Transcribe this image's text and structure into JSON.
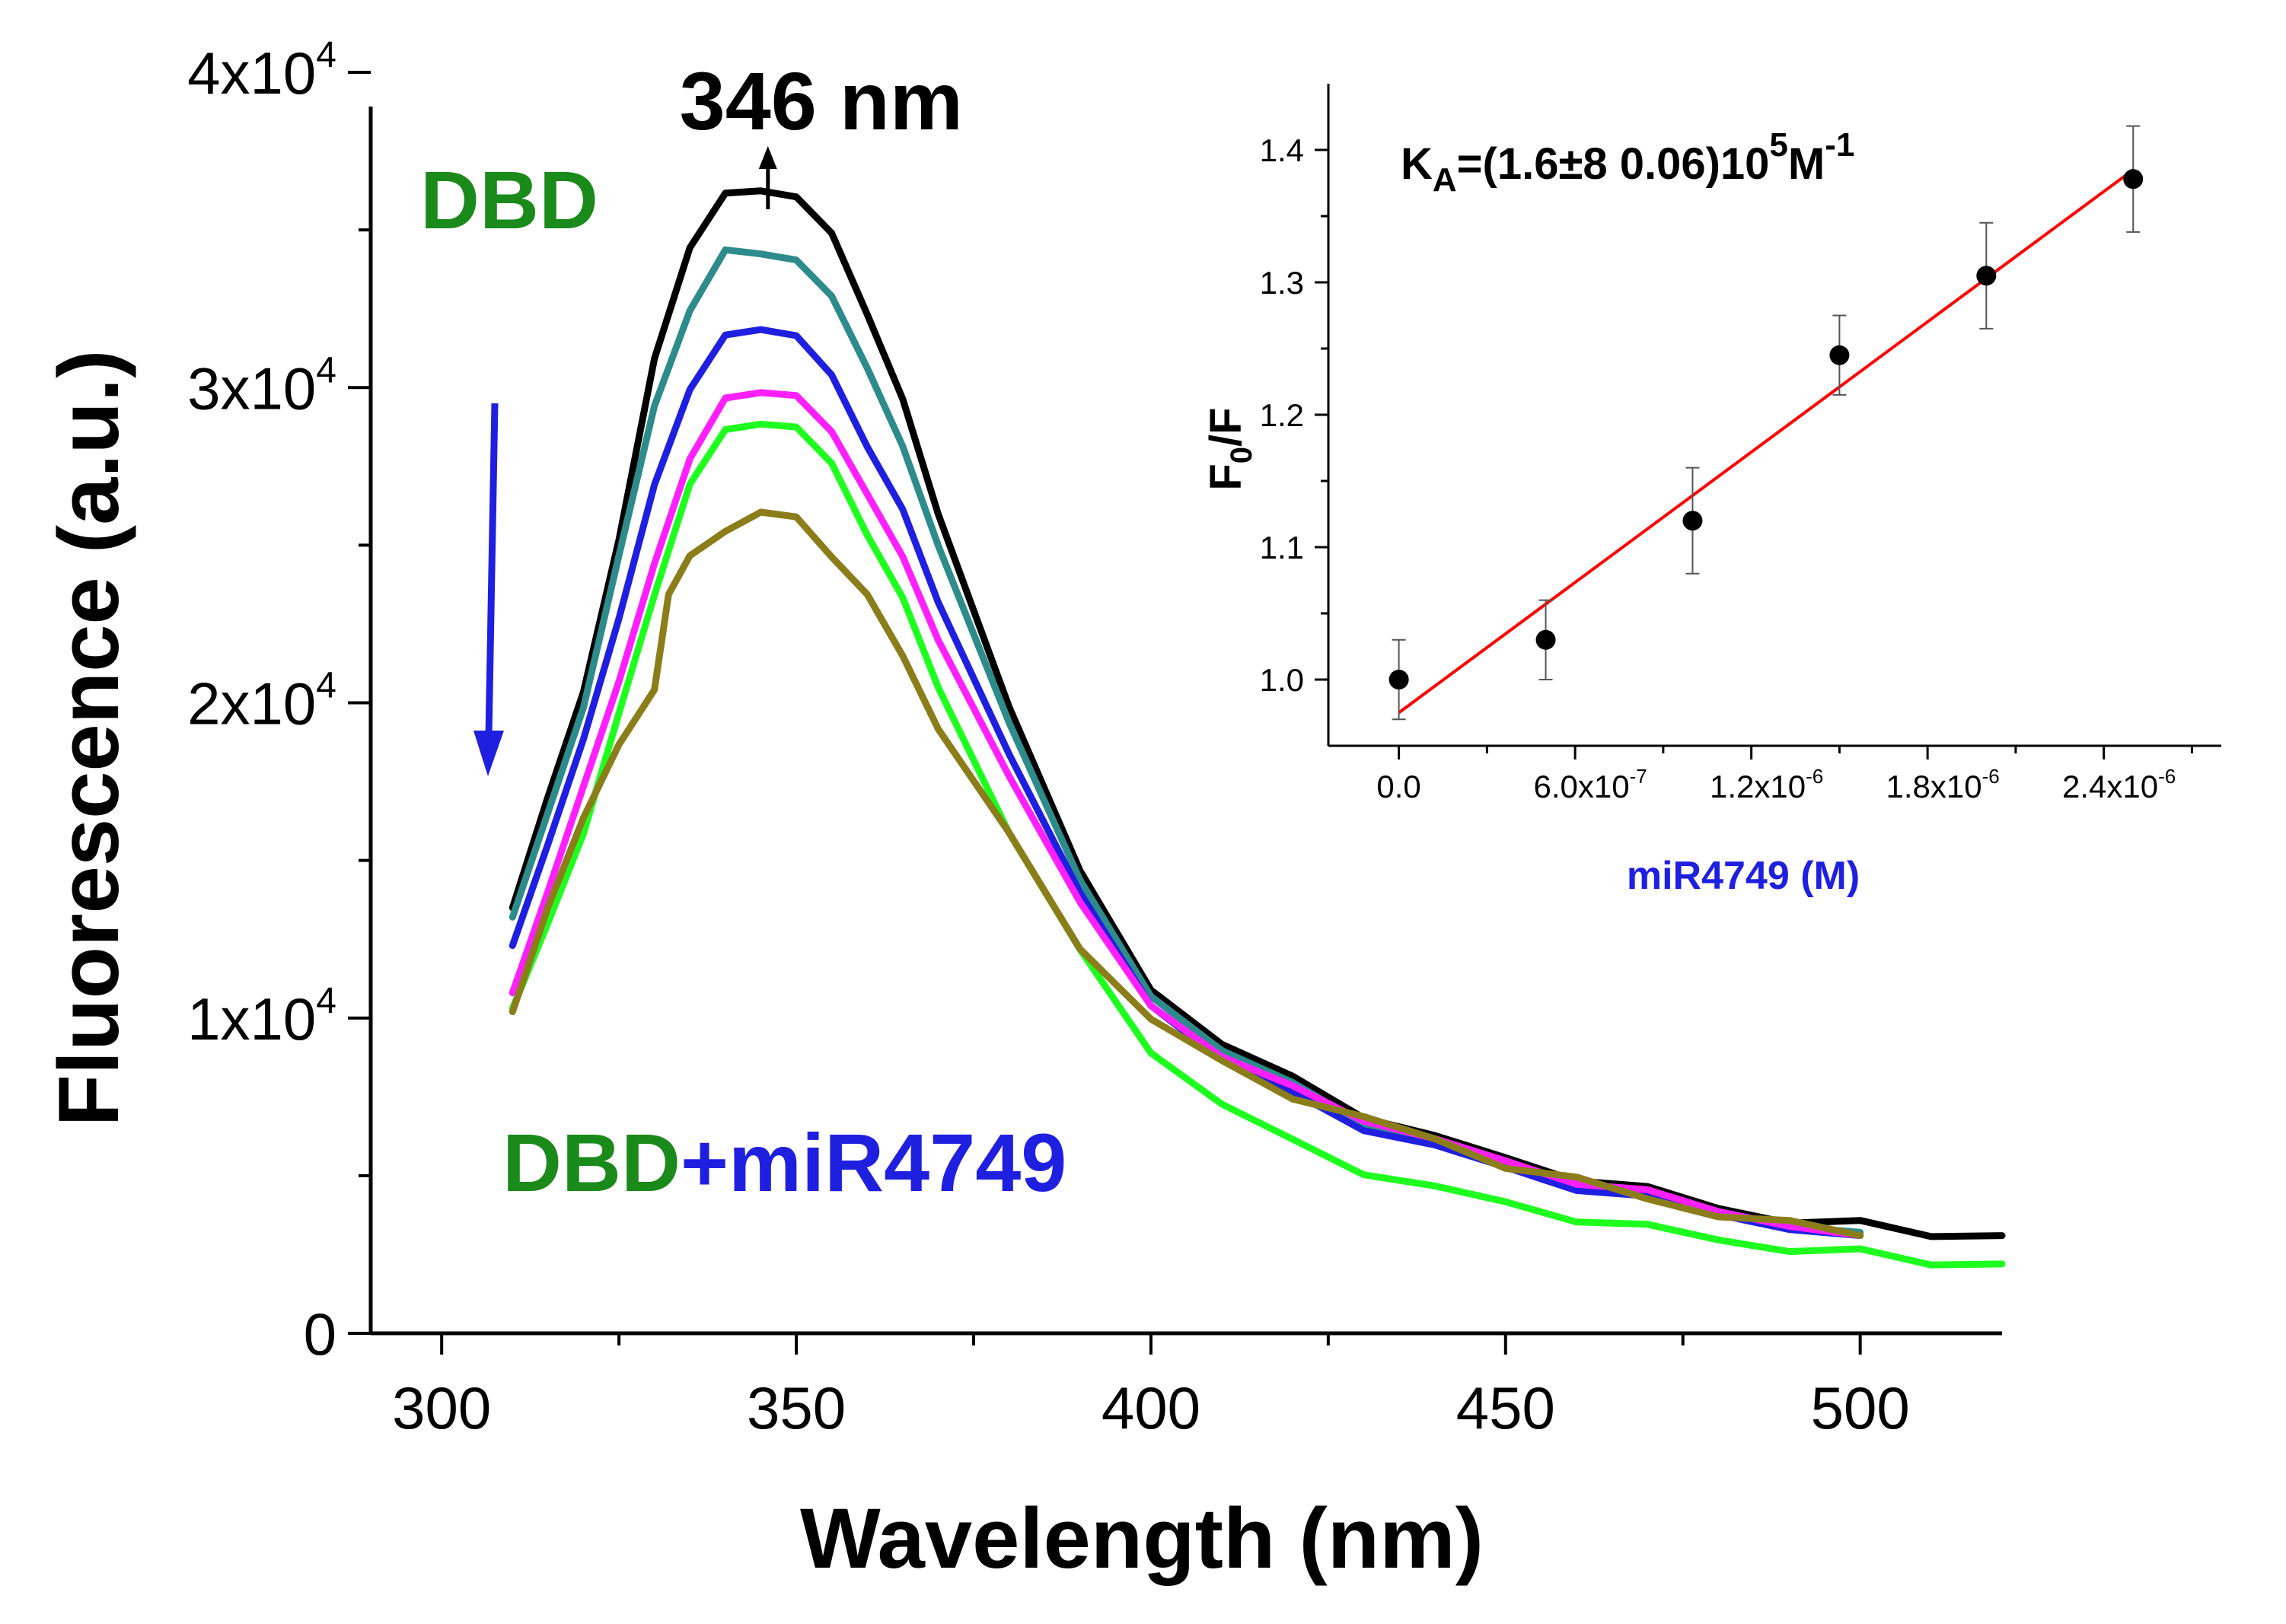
{
  "chart_data": [
    {
      "type": "line",
      "name": "main-spectrum",
      "xlabel": "Wavelength (nm)",
      "ylabel": "Fluorescence (a.u.)",
      "xlim": [
        290,
        520
      ],
      "ylim": [
        0,
        40000
      ],
      "x_ticks": [
        300,
        350,
        400,
        450,
        500
      ],
      "y_ticks": [
        {
          "value": 0,
          "base": "0",
          "exp": ""
        },
        {
          "value": 10000,
          "base": "1x10",
          "exp": "4"
        },
        {
          "value": 20000,
          "base": "2x10",
          "exp": "4"
        },
        {
          "value": 30000,
          "base": "3x10",
          "exp": "4"
        },
        {
          "value": 40000,
          "base": "4x10",
          "exp": "4"
        }
      ],
      "annotations": {
        "peak": "346 nm",
        "peak_x": 346,
        "dbd": "DBD",
        "dbd_mir_a": "DBD",
        "dbd_mir_b": "+miR4749"
      },
      "series": [
        {
          "name": "black",
          "color": "#000000",
          "x": [
            310,
            315,
            320,
            325,
            330,
            335,
            340,
            345,
            350,
            355,
            360,
            365,
            370,
            380,
            390,
            400,
            410,
            420,
            430,
            440,
            450,
            460,
            470,
            480,
            490,
            500,
            510,
            520
          ],
          "y": [
            13500,
            17000,
            20500,
            25000,
            31000,
            34500,
            36000,
            36400,
            36000,
            34800,
            32500,
            29500,
            26000,
            20000,
            14500,
            11000,
            9200,
            8000,
            7000,
            6200,
            5500,
            5000,
            4500,
            4000,
            3600,
            3400,
            3200,
            3100
          ]
        },
        {
          "name": "teal",
          "color": "#2e8b8b",
          "x": [
            310,
            315,
            320,
            325,
            330,
            335,
            340,
            345,
            350,
            355,
            360,
            365,
            370,
            380,
            390,
            400,
            410,
            420,
            430,
            440,
            450,
            460,
            470,
            480,
            490,
            500
          ],
          "y": [
            13200,
            16500,
            20000,
            24500,
            29500,
            32500,
            34200,
            34400,
            34000,
            32800,
            30800,
            28000,
            25000,
            19500,
            14200,
            10800,
            9000,
            7800,
            6800,
            6000,
            5300,
            4800,
            4300,
            3900,
            3500,
            3200
          ]
        },
        {
          "name": "blue",
          "color": "#1f1fe0",
          "x": [
            310,
            315,
            320,
            325,
            330,
            335,
            340,
            345,
            350,
            355,
            360,
            365,
            370,
            380,
            390,
            400,
            410,
            420,
            430,
            440,
            450,
            460,
            470,
            480,
            490,
            500
          ],
          "y": [
            12300,
            15500,
            19000,
            22500,
            27000,
            30000,
            31500,
            32000,
            31600,
            30300,
            28300,
            26000,
            23200,
            18500,
            13800,
            10500,
            8700,
            7500,
            6600,
            5900,
            5200,
            4700,
            4200,
            3800,
            3400,
            3100
          ]
        },
        {
          "name": "magenta",
          "color": "#ff1fff",
          "x": [
            310,
            315,
            320,
            325,
            330,
            335,
            340,
            345,
            350,
            355,
            360,
            365,
            370,
            380,
            390,
            400,
            410,
            420,
            430,
            440,
            450,
            460,
            470,
            480,
            490,
            500
          ],
          "y": [
            10800,
            14000,
            17500,
            20500,
            24500,
            27800,
            29500,
            30000,
            29700,
            28500,
            26800,
            24500,
            22000,
            17800,
            13500,
            10500,
            8800,
            7700,
            6900,
            6100,
            5400,
            4900,
            4400,
            3900,
            3500,
            3100
          ]
        },
        {
          "name": "green",
          "color": "#1fff1f",
          "x": [
            310,
            315,
            320,
            325,
            330,
            335,
            340,
            345,
            350,
            355,
            360,
            365,
            370,
            380,
            390,
            400,
            410,
            420,
            430,
            440,
            450,
            460,
            470,
            480,
            490,
            500,
            510,
            520
          ],
          "y": [
            10300,
            13000,
            16000,
            19500,
            23500,
            27000,
            28500,
            29000,
            28700,
            27500,
            25500,
            23200,
            20500,
            16000,
            12000,
            9000,
            7300,
            6000,
            5200,
            4600,
            4100,
            3700,
            3300,
            3000,
            2700,
            2500,
            2300,
            2200
          ]
        },
        {
          "name": "olive",
          "color": "#8b7d1a",
          "x": [
            310,
            315,
            320,
            325,
            330,
            332,
            335,
            340,
            345,
            350,
            355,
            360,
            365,
            370,
            380,
            390,
            400,
            410,
            420,
            430,
            440,
            450,
            460,
            470,
            480,
            490,
            500
          ],
          "y": [
            10200,
            13500,
            16500,
            18500,
            20500,
            23500,
            24500,
            25600,
            26000,
            25800,
            24800,
            23300,
            21500,
            19300,
            15700,
            12300,
            10000,
            8500,
            7600,
            6800,
            6100,
            5400,
            4800,
            4300,
            3800,
            3400,
            3100
          ]
        }
      ]
    },
    {
      "type": "scatter",
      "name": "inset-stern-volmer",
      "xlabel": "miR4749 (M)",
      "ylabel_base": "F",
      "ylabel_sub": "0",
      "ylabel_rest": "/F",
      "xlim": [
        -2.4e-07,
        2.8e-06
      ],
      "ylim": [
        0.95,
        1.45
      ],
      "x_ticks": [
        {
          "value": 0,
          "base": "0.0",
          "exp": ""
        },
        {
          "value": 6e-07,
          "base": "6.0x10",
          "exp": "-7"
        },
        {
          "value": 1.2e-06,
          "base": "1.2x10",
          "exp": "-6"
        },
        {
          "value": 1.8e-06,
          "base": "1.8x10",
          "exp": "-6"
        },
        {
          "value": 2.4e-06,
          "base": "2.4x10",
          "exp": "-6"
        }
      ],
      "y_ticks": [
        1.0,
        1.1,
        1.2,
        1.3,
        1.4
      ],
      "y_tick_labels": [
        "1.0",
        "1.1",
        "1.2",
        "1.3",
        "1.4"
      ],
      "points": {
        "x": [
          0,
          5e-07,
          1e-06,
          1.5e-06,
          2e-06,
          2.5e-06
        ],
        "y": [
          1.0,
          1.03,
          1.12,
          1.245,
          1.305,
          1.378
        ],
        "err": [
          0.03,
          0.03,
          0.04,
          0.03,
          0.04,
          0.04
        ]
      },
      "fit": {
        "x": [
          0,
          2.5e-06
        ],
        "y": [
          0.975,
          1.385
        ],
        "color": "#ff0000"
      },
      "annotation": {
        "k": "K",
        "k_sub": "A",
        "main": "=(1.6±8 0.06)10",
        "exp": "5",
        "unit": "M",
        "unit_exp": "-1"
      }
    }
  ],
  "colors": {
    "dbd": "#1a8a1a",
    "mir": "#1f1fe0",
    "arrow": "#1f1fe0",
    "fit": "#ff0000"
  }
}
